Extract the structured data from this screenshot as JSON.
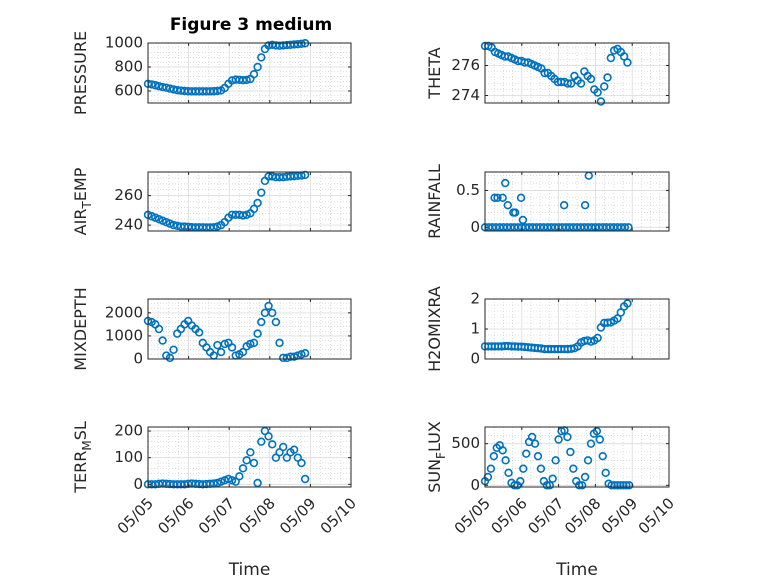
{
  "figure_title": "Figure 3 medium",
  "chart_data": [
    {
      "type": "scatter",
      "panel": "left-row-1",
      "title": "",
      "xlabel": "",
      "ylabel": "PRESSURE",
      "xlim": [
        0,
        5
      ],
      "ylim": [
        500,
        1000
      ],
      "xticks": [
        0,
        1,
        2,
        3,
        4,
        5
      ],
      "xticklabels": [],
      "yticks": [
        600,
        800,
        1000
      ],
      "yticklabels": [
        "600",
        "800",
        "1000"
      ],
      "grid": true,
      "series": [
        {
          "x": [
            0,
            0.09,
            0.18,
            0.27,
            0.36,
            0.45,
            0.54,
            0.63,
            0.72,
            0.81,
            0.9,
            0.99,
            1.08,
            1.17,
            1.26,
            1.35,
            1.44,
            1.53,
            1.62,
            1.71,
            1.8,
            1.89,
            1.98,
            2.07,
            2.16,
            2.25,
            2.34,
            2.43,
            2.52,
            2.61,
            2.7,
            2.79,
            2.88,
            2.97,
            3.06,
            3.15,
            3.24,
            3.33,
            3.42,
            3.51,
            3.6,
            3.69,
            3.78,
            3.87
          ],
          "y": [
            660,
            655,
            648,
            640,
            633,
            628,
            620,
            613,
            607,
            603,
            600,
            598,
            597,
            597,
            597,
            597,
            597,
            597,
            598,
            600,
            605,
            625,
            660,
            688,
            695,
            693,
            690,
            692,
            700,
            740,
            800,
            880,
            950,
            980,
            985,
            980,
            978,
            980,
            983,
            985,
            988,
            990,
            993,
            998
          ]
        }
      ]
    },
    {
      "type": "scatter",
      "panel": "right-row-1",
      "title": "",
      "xlabel": "",
      "ylabel": "THETA",
      "xlim": [
        0,
        5
      ],
      "ylim": [
        273.5,
        277.5
      ],
      "xticks": [
        0,
        1,
        2,
        3,
        4,
        5
      ],
      "xticklabels": [],
      "yticks": [
        274,
        276
      ],
      "yticklabels": [
        "274",
        "276"
      ],
      "grid": true,
      "series": [
        {
          "x": [
            0,
            0.09,
            0.18,
            0.27,
            0.36,
            0.45,
            0.54,
            0.63,
            0.72,
            0.81,
            0.9,
            0.99,
            1.08,
            1.17,
            1.26,
            1.35,
            1.44,
            1.53,
            1.62,
            1.71,
            1.8,
            1.89,
            1.98,
            2.07,
            2.16,
            2.25,
            2.34,
            2.43,
            2.52,
            2.61,
            2.7,
            2.79,
            2.88,
            2.97,
            3.06,
            3.15,
            3.24,
            3.33,
            3.42,
            3.51,
            3.6,
            3.69,
            3.78,
            3.87
          ],
          "y": [
            277.3,
            277.3,
            277.2,
            276.9,
            276.8,
            276.7,
            276.6,
            276.6,
            276.5,
            276.4,
            276.3,
            276.3,
            276.2,
            276.2,
            276.1,
            276.0,
            275.9,
            275.8,
            275.5,
            275.5,
            275.3,
            275.1,
            274.9,
            274.9,
            274.9,
            274.8,
            274.8,
            275.3,
            275.0,
            274.8,
            275.6,
            275.3,
            275.1,
            274.4,
            274.2,
            273.6,
            274.6,
            275.2,
            276.5,
            277.0,
            277.1,
            276.9,
            276.6,
            276.2
          ]
        }
      ]
    },
    {
      "type": "scatter",
      "panel": "left-row-2",
      "title": "",
      "xlabel": "",
      "ylabel": "AIR_TEMP",
      "xlim": [
        0,
        5
      ],
      "ylim": [
        236,
        276
      ],
      "xticks": [
        0,
        1,
        2,
        3,
        4,
        5
      ],
      "xticklabels": [],
      "yticks": [
        240,
        260
      ],
      "yticklabels": [
        "240",
        "260"
      ],
      "grid": true,
      "series": [
        {
          "x": [
            0,
            0.09,
            0.18,
            0.27,
            0.36,
            0.45,
            0.54,
            0.63,
            0.72,
            0.81,
            0.9,
            0.99,
            1.08,
            1.17,
            1.26,
            1.35,
            1.44,
            1.53,
            1.62,
            1.71,
            1.8,
            1.89,
            1.98,
            2.07,
            2.16,
            2.25,
            2.34,
            2.43,
            2.52,
            2.61,
            2.7,
            2.79,
            2.88,
            2.97,
            3.06,
            3.15,
            3.24,
            3.33,
            3.42,
            3.51,
            3.6,
            3.69,
            3.78,
            3.87
          ],
          "y": [
            247,
            246,
            245,
            244,
            243,
            242,
            241,
            240,
            239.5,
            239,
            239,
            238.8,
            238.6,
            238.5,
            238.5,
            238.5,
            238.4,
            238.4,
            238.5,
            239,
            240,
            242,
            245,
            247,
            247,
            247,
            246.5,
            247,
            248,
            251,
            255,
            262,
            270,
            273,
            273,
            272.5,
            272.5,
            272.5,
            272.8,
            273,
            273.2,
            273.4,
            273.6,
            274
          ]
        }
      ]
    },
    {
      "type": "scatter",
      "panel": "right-row-2",
      "title": "",
      "xlabel": "",
      "ylabel": "RAINFALL",
      "xlim": [
        0,
        5
      ],
      "ylim": [
        -0.05,
        0.75
      ],
      "xticks": [
        0,
        1,
        2,
        3,
        4,
        5
      ],
      "xticklabels": [],
      "yticks": [
        0,
        0.5
      ],
      "yticklabels": [
        "0",
        "0.5"
      ],
      "grid": true,
      "series": [
        {
          "x": [
            0,
            0.1,
            0.2,
            0.3,
            0.4,
            0.5,
            0.6,
            0.7,
            0.8,
            0.9,
            1.0,
            1.1,
            1.2,
            1.3,
            1.4,
            1.5,
            1.6,
            1.7,
            1.8,
            1.9,
            2.0,
            2.1,
            2.2,
            2.3,
            2.4,
            2.5,
            2.6,
            2.7,
            2.8,
            2.9,
            3.0,
            3.1,
            3.2,
            3.3,
            3.4,
            3.5,
            3.6,
            3.7,
            3.8,
            3.9,
            0.26,
            0.34,
            0.48,
            0.55,
            0.62,
            0.77,
            0.82,
            0.98,
            1.03,
            2.15,
            2.72,
            2.82
          ],
          "y": [
            0,
            0,
            0,
            0,
            0,
            0,
            0,
            0,
            0,
            0,
            0,
            0,
            0,
            0,
            0,
            0,
            0,
            0,
            0,
            0,
            0,
            0,
            0,
            0,
            0,
            0,
            0,
            0,
            0,
            0,
            0,
            0,
            0,
            0,
            0,
            0,
            0,
            0,
            0,
            0,
            0.4,
            0.4,
            0.4,
            0.6,
            0.3,
            0.2,
            0.2,
            0.4,
            0.1,
            0.3,
            0.3,
            0.7
          ]
        }
      ]
    },
    {
      "type": "scatter",
      "panel": "left-row-3",
      "title": "",
      "xlabel": "",
      "ylabel": "MIXDEPTH",
      "xlim": [
        0,
        5
      ],
      "ylim": [
        0,
        2600
      ],
      "xticks": [
        0,
        1,
        2,
        3,
        4,
        5
      ],
      "xticklabels": [],
      "yticks": [
        0,
        1000,
        2000
      ],
      "yticklabels": [
        "0",
        "1000",
        "2000"
      ],
      "grid": true,
      "series": [
        {
          "x": [
            0,
            0.09,
            0.18,
            0.27,
            0.36,
            0.45,
            0.54,
            0.63,
            0.72,
            0.81,
            0.9,
            0.99,
            1.08,
            1.17,
            1.26,
            1.35,
            1.44,
            1.53,
            1.62,
            1.71,
            1.8,
            1.89,
            1.98,
            2.07,
            2.16,
            2.25,
            2.34,
            2.43,
            2.52,
            2.61,
            2.7,
            2.79,
            2.88,
            2.97,
            3.06,
            3.15,
            3.24,
            3.33,
            3.42,
            3.51,
            3.6,
            3.69,
            3.78,
            3.87
          ],
          "y": [
            1650,
            1600,
            1500,
            1300,
            800,
            150,
            50,
            400,
            1100,
            1300,
            1500,
            1650,
            1450,
            1300,
            1150,
            700,
            500,
            300,
            150,
            600,
            300,
            650,
            700,
            500,
            150,
            200,
            300,
            550,
            650,
            700,
            1100,
            1600,
            2000,
            2300,
            2000,
            1600,
            700,
            50,
            50,
            100,
            100,
            150,
            200,
            250
          ]
        }
      ]
    },
    {
      "type": "scatter",
      "panel": "right-row-3",
      "title": "",
      "xlabel": "",
      "ylabel": "H2OMIXRA",
      "xlim": [
        0,
        5
      ],
      "ylim": [
        0,
        2
      ],
      "xticks": [
        0,
        1,
        2,
        3,
        4,
        5
      ],
      "xticklabels": [],
      "yticks": [
        0,
        1,
        2
      ],
      "yticklabels": [
        "0",
        "1",
        "2"
      ],
      "grid": true,
      "series": [
        {
          "x": [
            0,
            0.09,
            0.18,
            0.27,
            0.36,
            0.45,
            0.54,
            0.63,
            0.72,
            0.81,
            0.9,
            0.99,
            1.08,
            1.17,
            1.26,
            1.35,
            1.44,
            1.53,
            1.62,
            1.71,
            1.8,
            1.89,
            1.98,
            2.07,
            2.16,
            2.25,
            2.34,
            2.43,
            2.52,
            2.61,
            2.7,
            2.79,
            2.88,
            2.97,
            3.06,
            3.15,
            3.24,
            3.33,
            3.42,
            3.51,
            3.6,
            3.69,
            3.78,
            3.87
          ],
          "y": [
            0.42,
            0.42,
            0.42,
            0.42,
            0.42,
            0.42,
            0.43,
            0.43,
            0.42,
            0.42,
            0.41,
            0.41,
            0.4,
            0.39,
            0.38,
            0.37,
            0.36,
            0.35,
            0.33,
            0.33,
            0.33,
            0.33,
            0.33,
            0.33,
            0.33,
            0.33,
            0.34,
            0.36,
            0.42,
            0.55,
            0.6,
            0.62,
            0.58,
            0.62,
            0.7,
            1.05,
            1.2,
            1.21,
            1.22,
            1.28,
            1.35,
            1.55,
            1.75,
            1.85
          ]
        }
      ]
    },
    {
      "type": "scatter",
      "panel": "left-row-4",
      "title": "",
      "xlabel": "Time",
      "ylabel": "TERR_MSL",
      "xlim": [
        0,
        5
      ],
      "ylim": [
        -10,
        215
      ],
      "xticks": [
        0,
        1,
        2,
        3,
        4,
        5
      ],
      "xticklabels": [
        "05/05",
        "05/06",
        "05/07",
        "05/08",
        "05/09",
        "05/10"
      ],
      "yticks": [
        0,
        100,
        200
      ],
      "yticklabels": [
        "0",
        "100",
        "200"
      ],
      "grid": true,
      "series": [
        {
          "x": [
            0,
            0.09,
            0.18,
            0.27,
            0.36,
            0.45,
            0.54,
            0.63,
            0.72,
            0.81,
            0.9,
            0.99,
            1.08,
            1.17,
            1.26,
            1.35,
            1.44,
            1.53,
            1.62,
            1.71,
            1.8,
            1.89,
            1.98,
            2.07,
            2.16,
            2.25,
            2.34,
            2.43,
            2.52,
            2.61,
            2.7,
            2.79,
            2.88,
            2.97,
            3.06,
            3.15,
            3.24,
            3.33,
            3.42,
            3.51,
            3.6,
            3.69,
            3.78,
            3.87
          ],
          "y": [
            0,
            0,
            0,
            2,
            3,
            2,
            1,
            0,
            0,
            0,
            0,
            2,
            3,
            2,
            1,
            0,
            1,
            2,
            3,
            5,
            10,
            15,
            20,
            15,
            10,
            30,
            60,
            90,
            120,
            80,
            5,
            160,
            200,
            180,
            150,
            100,
            120,
            140,
            100,
            120,
            130,
            100,
            80,
            20
          ]
        }
      ]
    },
    {
      "type": "scatter",
      "panel": "right-row-4",
      "title": "",
      "xlabel": "Time",
      "ylabel": "SUN_FLUX",
      "xlim": [
        0,
        5
      ],
      "ylim": [
        -20,
        700
      ],
      "xticks": [
        0,
        1,
        2,
        3,
        4,
        5
      ],
      "xticklabels": [
        "05/05",
        "05/06",
        "05/07",
        "05/08",
        "05/09",
        "05/10"
      ],
      "yticks": [
        0,
        500
      ],
      "yticklabels": [
        "0",
        "500"
      ],
      "grid": true,
      "series": [
        {
          "x": [
            0,
            0.08,
            0.16,
            0.24,
            0.32,
            0.4,
            0.48,
            0.56,
            0.64,
            0.72,
            0.8,
            0.88,
            0.96,
            1.04,
            1.12,
            1.2,
            1.28,
            1.36,
            1.44,
            1.52,
            1.6,
            1.68,
            1.76,
            1.84,
            1.92,
            2.0,
            2.08,
            2.16,
            2.24,
            2.32,
            2.4,
            2.48,
            2.56,
            2.64,
            2.72,
            2.8,
            2.88,
            2.96,
            3.04,
            3.12,
            3.2,
            3.28,
            3.36,
            3.44,
            3.52,
            3.6,
            3.68,
            3.76,
            3.84,
            3.92
          ],
          "y": [
            50,
            100,
            200,
            350,
            450,
            480,
            420,
            300,
            150,
            30,
            0,
            0,
            50,
            200,
            380,
            520,
            580,
            500,
            350,
            200,
            50,
            0,
            0,
            80,
            300,
            550,
            650,
            660,
            580,
            400,
            200,
            50,
            0,
            0,
            100,
            300,
            500,
            620,
            650,
            550,
            350,
            150,
            20,
            0,
            0,
            0,
            0,
            0,
            0,
            0
          ]
        }
      ]
    }
  ]
}
